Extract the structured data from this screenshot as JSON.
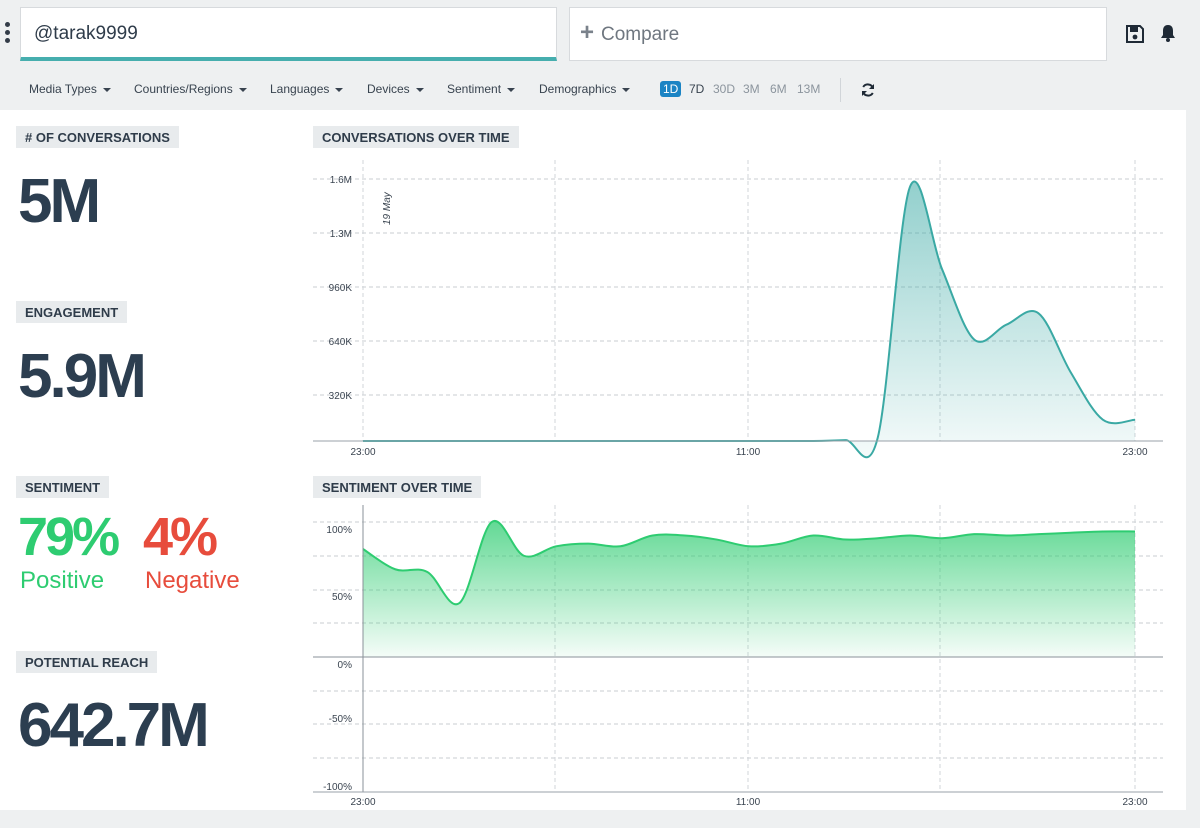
{
  "header": {
    "search_value": "@tarak9999",
    "compare_label": "Compare"
  },
  "filters": [
    "Media Types",
    "Countries/Regions",
    "Languages",
    "Devices",
    "Sentiment",
    "Demographics"
  ],
  "time_ranges": [
    {
      "label": "1D",
      "active": true
    },
    {
      "label": "7D",
      "active": false
    },
    {
      "label": "30D",
      "active": false
    },
    {
      "label": "3M",
      "active": false
    },
    {
      "label": "6M",
      "active": false
    },
    {
      "label": "13M",
      "active": false
    }
  ],
  "metrics": {
    "conversations_label": "# OF CONVERSATIONS",
    "conversations_value": "5M",
    "engagement_label": "ENGAGEMENT",
    "engagement_value": "5.9M",
    "sentiment_label": "SENTIMENT",
    "positive_value": "79%",
    "positive_label": "Positive",
    "negative_value": "4%",
    "negative_label": "Negative",
    "reach_label": "POTENTIAL REACH",
    "reach_value": "642.7M"
  },
  "colors": {
    "accent": "#46aeae",
    "conversations_line": "#3aa9a4",
    "sentiment_line": "#2ecc71",
    "positive": "#2ecc71",
    "negative": "#e74c3c",
    "active_range": "#1b84c4",
    "metric_text": "#2c3e50"
  },
  "icons": {
    "menu": "kebab-menu-icon",
    "compare": "plus-icon",
    "save": "save-icon",
    "notifications": "bell-icon",
    "refresh": "refresh-icon"
  },
  "chart_data": [
    {
      "type": "area",
      "title": "CONVERSATIONS OVER TIME",
      "annotation": "19 May",
      "x_tick_labels": [
        "23:00",
        "11:00",
        "23:00"
      ],
      "y_tick_labels": [
        "320K",
        "640K",
        "960K",
        "1.3M",
        "1.6M"
      ],
      "ylim": [
        0,
        1600000
      ],
      "x_hours": [
        0,
        2,
        4,
        6,
        8,
        10,
        12,
        14,
        15,
        16,
        17,
        18,
        19,
        20,
        21,
        22,
        23,
        24
      ],
      "y": [
        0,
        0,
        0,
        0,
        0,
        0,
        0,
        0,
        5000,
        18000,
        1550000,
        1050000,
        620000,
        710000,
        780000,
        420000,
        130000,
        130000
      ],
      "grid": true
    },
    {
      "type": "area",
      "title": "SENTIMENT OVER TIME",
      "x_tick_labels": [
        "23:00",
        "11:00",
        "23:00"
      ],
      "y_tick_labels": [
        "100%",
        "50%",
        "0%",
        "-50%",
        "-100%"
      ],
      "ylim": [
        -100,
        100
      ],
      "x_hours": [
        0,
        1,
        2,
        3,
        4,
        5,
        6,
        7,
        8,
        9,
        10,
        11,
        12,
        13,
        14,
        15,
        16,
        17,
        18,
        19,
        20,
        21,
        22,
        23,
        24
      ],
      "y": [
        80,
        65,
        63,
        40,
        100,
        75,
        82,
        84,
        82,
        90,
        90,
        87,
        82,
        84,
        90,
        87,
        88,
        90,
        88,
        91,
        90,
        91,
        92,
        93,
        93
      ],
      "grid": true
    }
  ]
}
